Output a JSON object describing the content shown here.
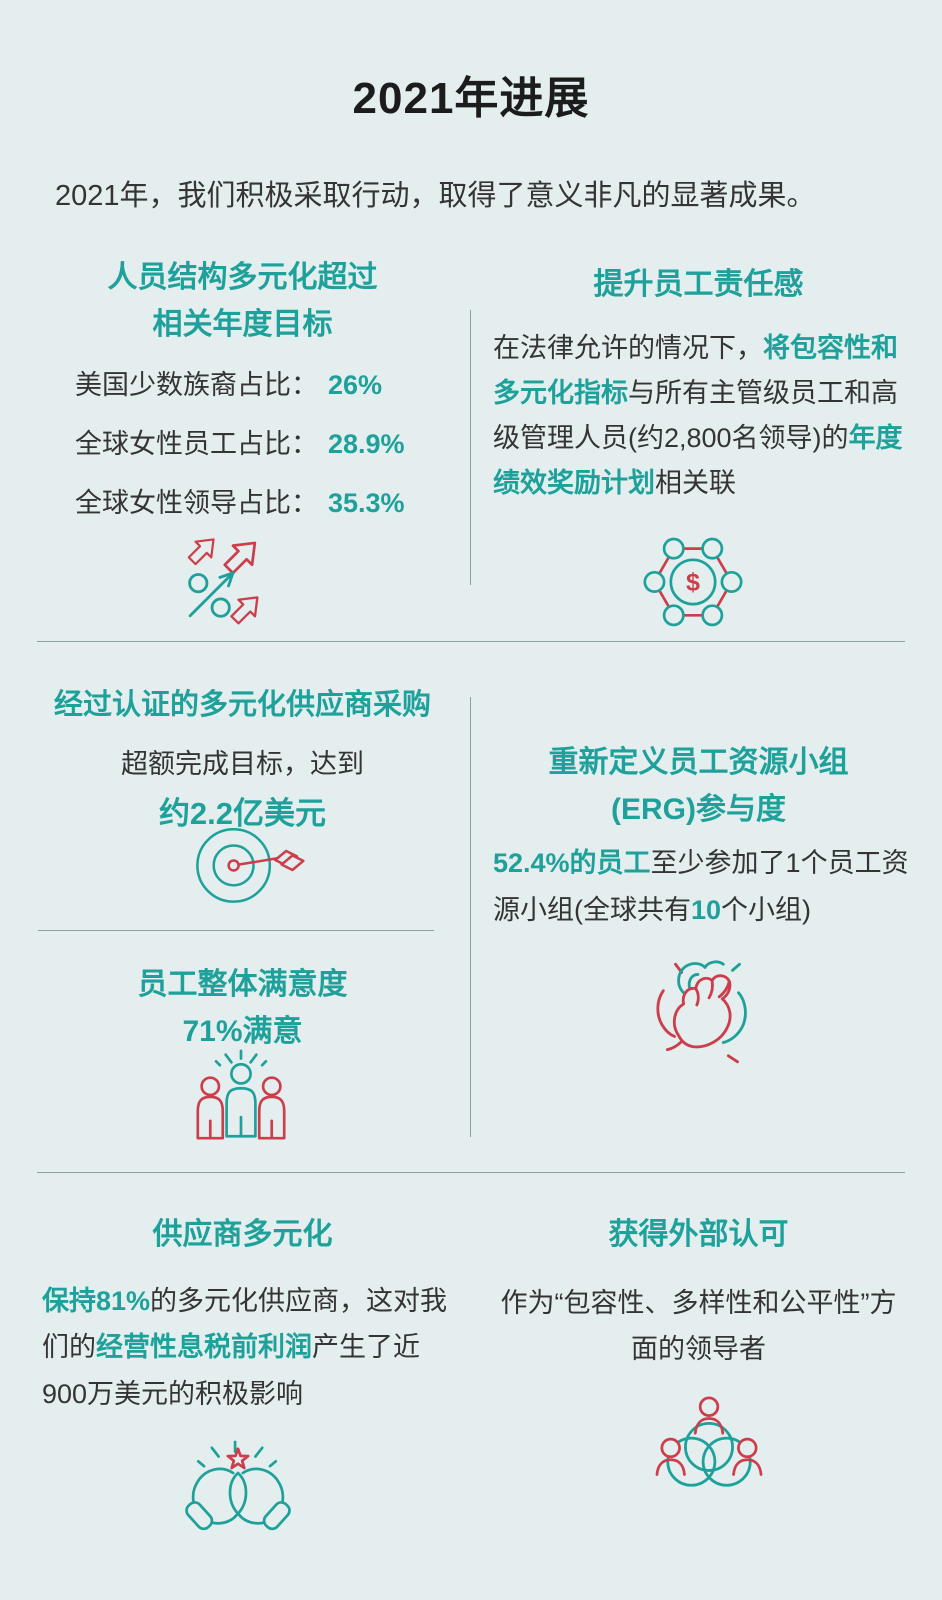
{
  "page": {
    "title": "2021年进展",
    "intro": "2021年，我们积极采取行动，取得了意义非凡的显著成果。"
  },
  "colors": {
    "background": "#e4eeee",
    "teal_accent": "#1fa19b",
    "red_accent": "#cc3e4b",
    "ink": "#343434",
    "divider": "#7d9090"
  },
  "icons": {
    "workforce": "growth-arrows-icon",
    "accountability": "incentive-network-icon",
    "supplier_spend": "target-arrow-icon",
    "erg": "hands-stack-icon",
    "satisfaction": "three-people-icon",
    "supplier_diversity": "cupped-hands-star-icon",
    "recognition": "people-circles-icon"
  },
  "sections": {
    "workforce": {
      "heading_line1": "人员结构多元化超过",
      "heading_line2": "相关年度目标",
      "stats": [
        {
          "label": "美国少数族裔占比：",
          "value": "26%"
        },
        {
          "label": "全球女性员工占比：",
          "value": "28.9%"
        },
        {
          "label": "全球女性领导占比：",
          "value": "35.3%"
        }
      ]
    },
    "accountability": {
      "heading": "提升员工责任感",
      "money_symbol": "$",
      "body": [
        {
          "text": "在法律允许的情况下，",
          "em": false
        },
        {
          "text": "将包容性和多元化指标",
          "em": true
        },
        {
          "text": "与所有主管级员工和高级管理人员(约2,800名领导)的",
          "em": false
        },
        {
          "text": "年度绩效奖励计划",
          "em": true
        },
        {
          "text": "相关联",
          "em": false
        }
      ]
    },
    "supplier_spend": {
      "heading": "经过认证的多元化供应商采购",
      "line1": "超额完成目标，达到",
      "line2": "约2.2亿美元"
    },
    "erg": {
      "heading_line1": "重新定义员工资源小组",
      "heading_line2": "(ERG)参与度",
      "body": [
        {
          "text": "52.4%的员工",
          "em": true
        },
        {
          "text": "至少参加了1个员工资源小组(全球共有",
          "em": false
        },
        {
          "text": "10",
          "em": true
        },
        {
          "text": "个小组)",
          "em": false
        }
      ]
    },
    "satisfaction": {
      "heading_line1": "员工整体满意度",
      "heading_line2": "71%满意"
    },
    "supplier_diversity": {
      "heading": "供应商多元化",
      "body": [
        {
          "text": "保持81%",
          "em": true
        },
        {
          "text": "的多元化供应商，这对我们的",
          "em": false
        },
        {
          "text": "经营性息税前利润",
          "em": true
        },
        {
          "text": "产生了近900万美元的积极影响",
          "em": false
        }
      ]
    },
    "recognition": {
      "heading": "获得外部认可",
      "body": "作为“包容性、多样性和公平性”方面的领导者"
    }
  }
}
